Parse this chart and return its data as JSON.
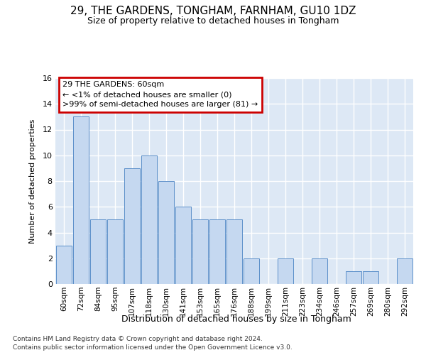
{
  "title": "29, THE GARDENS, TONGHAM, FARNHAM, GU10 1DZ",
  "subtitle": "Size of property relative to detached houses in Tongham",
  "xlabel": "Distribution of detached houses by size in Tongham",
  "ylabel": "Number of detached properties",
  "categories": [
    "60sqm",
    "72sqm",
    "84sqm",
    "95sqm",
    "107sqm",
    "118sqm",
    "130sqm",
    "141sqm",
    "153sqm",
    "165sqm",
    "176sqm",
    "188sqm",
    "199sqm",
    "211sqm",
    "223sqm",
    "234sqm",
    "246sqm",
    "257sqm",
    "269sqm",
    "280sqm",
    "292sqm"
  ],
  "values": [
    3,
    13,
    5,
    5,
    9,
    10,
    8,
    6,
    5,
    5,
    5,
    2,
    0,
    2,
    0,
    2,
    0,
    1,
    1,
    0,
    2
  ],
  "bar_color": "#c5d8f0",
  "bar_edge_color": "#5b8fc9",
  "annotation_box_color": "#ffffff",
  "annotation_border_color": "#cc0000",
  "annotation_text_line1": "29 THE GARDENS: 60sqm",
  "annotation_text_line2": "← <1% of detached houses are smaller (0)",
  "annotation_text_line3": ">99% of semi-detached houses are larger (81) →",
  "ylim": [
    0,
    16
  ],
  "yticks": [
    0,
    2,
    4,
    6,
    8,
    10,
    12,
    14,
    16
  ],
  "fig_bg_color": "#ffffff",
  "axes_bg_color": "#dde8f5",
  "grid_color": "#ffffff",
  "footer_line1": "Contains HM Land Registry data © Crown copyright and database right 2024.",
  "footer_line2": "Contains public sector information licensed under the Open Government Licence v3.0."
}
